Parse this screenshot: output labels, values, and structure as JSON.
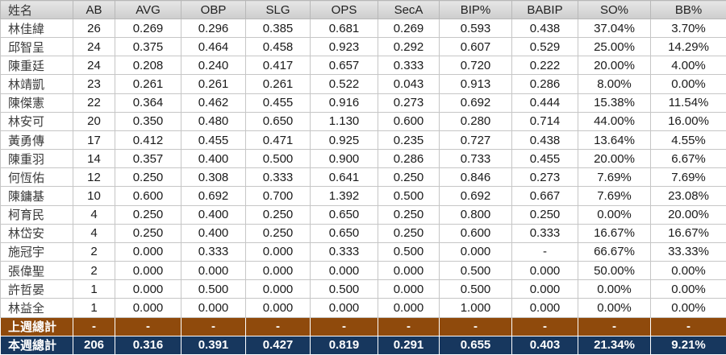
{
  "colors": {
    "header_bg": "#d9d9d9",
    "last_week_bg": "#8f4a0c",
    "this_week_bg": "#17375e",
    "grid_line": "#c6c6c6"
  },
  "table": {
    "columns": [
      "姓名",
      "AB",
      "AVG",
      "OBP",
      "SLG",
      "OPS",
      "SecA",
      "BIP%",
      "BABIP",
      "SO%",
      "BB%"
    ],
    "rows": [
      [
        "林佳緯",
        "26",
        "0.269",
        "0.296",
        "0.385",
        "0.681",
        "0.269",
        "0.593",
        "0.438",
        "37.04%",
        "3.70%"
      ],
      [
        "邱智呈",
        "24",
        "0.375",
        "0.464",
        "0.458",
        "0.923",
        "0.292",
        "0.607",
        "0.529",
        "25.00%",
        "14.29%"
      ],
      [
        "陳重廷",
        "24",
        "0.208",
        "0.240",
        "0.417",
        "0.657",
        "0.333",
        "0.720",
        "0.222",
        "20.00%",
        "4.00%"
      ],
      [
        "林靖凱",
        "23",
        "0.261",
        "0.261",
        "0.261",
        "0.522",
        "0.043",
        "0.913",
        "0.286",
        "8.00%",
        "0.00%"
      ],
      [
        "陳傑憲",
        "22",
        "0.364",
        "0.462",
        "0.455",
        "0.916",
        "0.273",
        "0.692",
        "0.444",
        "15.38%",
        "11.54%"
      ],
      [
        "林安可",
        "20",
        "0.350",
        "0.480",
        "0.650",
        "1.130",
        "0.600",
        "0.280",
        "0.714",
        "44.00%",
        "16.00%"
      ],
      [
        "黃勇傳",
        "17",
        "0.412",
        "0.455",
        "0.471",
        "0.925",
        "0.235",
        "0.727",
        "0.438",
        "13.64%",
        "4.55%"
      ],
      [
        "陳重羽",
        "14",
        "0.357",
        "0.400",
        "0.500",
        "0.900",
        "0.286",
        "0.733",
        "0.455",
        "20.00%",
        "6.67%"
      ],
      [
        "何恆佑",
        "12",
        "0.250",
        "0.308",
        "0.333",
        "0.641",
        "0.250",
        "0.846",
        "0.273",
        "7.69%",
        "7.69%"
      ],
      [
        "陳鏞基",
        "10",
        "0.600",
        "0.692",
        "0.700",
        "1.392",
        "0.500",
        "0.692",
        "0.667",
        "7.69%",
        "23.08%"
      ],
      [
        "柯育民",
        "4",
        "0.250",
        "0.400",
        "0.250",
        "0.650",
        "0.250",
        "0.800",
        "0.250",
        "0.00%",
        "20.00%"
      ],
      [
        "林岱安",
        "4",
        "0.250",
        "0.400",
        "0.250",
        "0.650",
        "0.250",
        "0.600",
        "0.333",
        "16.67%",
        "16.67%"
      ],
      [
        "施冠宇",
        "2",
        "0.000",
        "0.333",
        "0.000",
        "0.333",
        "0.500",
        "0.000",
        "-",
        "66.67%",
        "33.33%"
      ],
      [
        "張偉聖",
        "2",
        "0.000",
        "0.000",
        "0.000",
        "0.000",
        "0.000",
        "0.500",
        "0.000",
        "50.00%",
        "0.00%"
      ],
      [
        "許哲晏",
        "1",
        "0.000",
        "0.500",
        "0.000",
        "0.500",
        "0.000",
        "0.500",
        "0.000",
        "0.00%",
        "0.00%"
      ],
      [
        "林益全",
        "1",
        "0.000",
        "0.000",
        "0.000",
        "0.000",
        "0.000",
        "1.000",
        "0.000",
        "0.00%",
        "0.00%"
      ]
    ],
    "footer_rows": [
      {
        "id": "last-week",
        "style": "last-week",
        "cells": [
          "上週總計",
          "-",
          "-",
          "-",
          "-",
          "-",
          "-",
          "-",
          "-",
          "-",
          "-"
        ]
      },
      {
        "id": "this-week",
        "style": "this-week",
        "cells": [
          "本週總計",
          "206",
          "0.316",
          "0.391",
          "0.427",
          "0.819",
          "0.291",
          "0.655",
          "0.403",
          "21.34%",
          "9.21%"
        ]
      }
    ]
  }
}
